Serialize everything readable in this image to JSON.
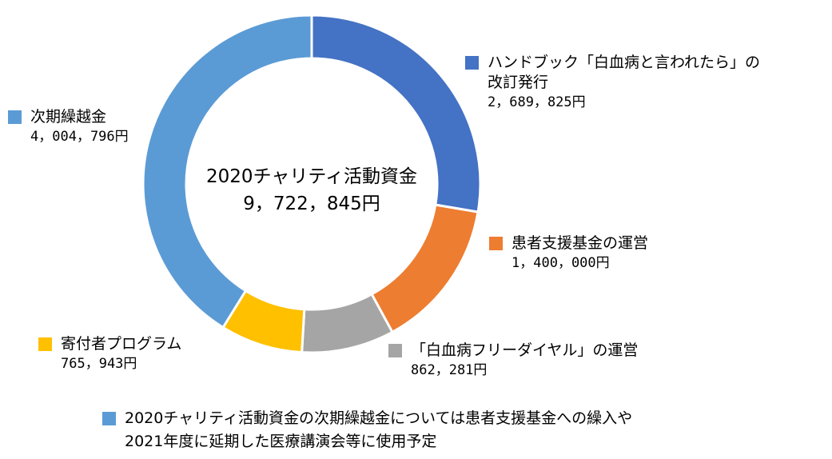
{
  "chart_data": {
    "type": "pie",
    "style": "donut",
    "center": {
      "title": "2020チャリティ活動資金",
      "total": "9，722，845円"
    },
    "slices": [
      {
        "label": "ハンドブック「白血病と言われたら」の改訂発行",
        "label_line1": "ハンドブック「白血病と言われたら」の",
        "label_line2": "改訂発行",
        "value": 2689825,
        "value_text": "2，689，825円",
        "color": "#4472C4"
      },
      {
        "label": "患者支援基金の運営",
        "value": 1400000,
        "value_text": "1，400，000円",
        "color": "#ED7D31"
      },
      {
        "label": "「白血病フリーダイヤル」の運営",
        "value": 862281,
        "value_text": "862，281円",
        "color": "#A5A5A5"
      },
      {
        "label": "寄付者プログラム",
        "value": 765943,
        "value_text": "765，943円",
        "color": "#FFC000"
      },
      {
        "label": "次期繰越金",
        "value": 4004796,
        "value_text": "4，004，796円",
        "color": "#5B9BD5"
      }
    ]
  },
  "note": {
    "line1": "2020チャリティ活動資金の次期繰越金については患者支援基金への繰入や",
    "line2": "2021年度に延期した医療講演会等に使用予定",
    "color": "#5B9BD5"
  }
}
